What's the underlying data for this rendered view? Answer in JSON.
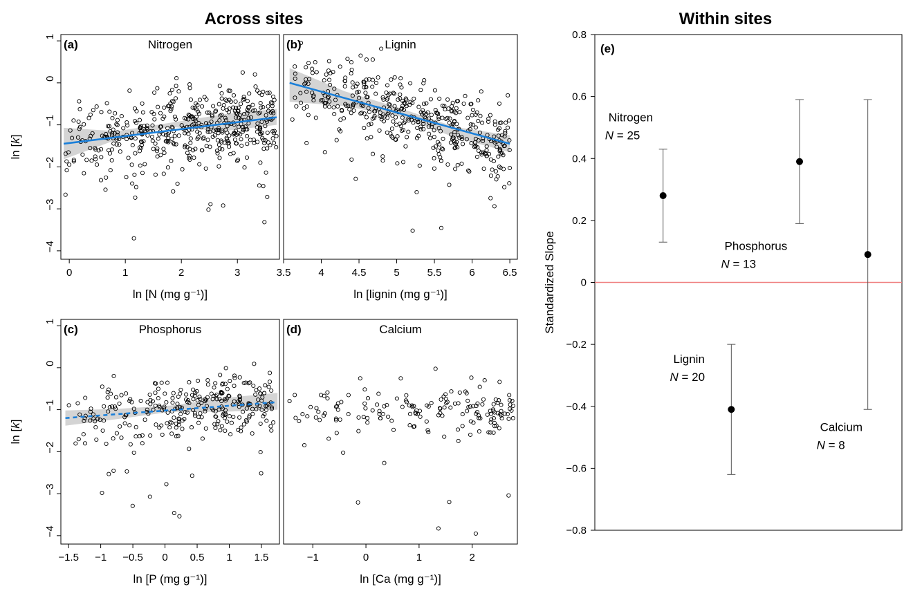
{
  "headings": {
    "left": "Across sites",
    "right": "Within sites"
  },
  "colors": {
    "fit_line": "#1a7fd9",
    "confidence_band": "#d4d4d4",
    "zero_line": "#f08080",
    "points": "#000000"
  },
  "chart_data": [
    {
      "id": "a",
      "tag": "(a)",
      "type": "scatter",
      "title": "Nitrogen",
      "xlabel": "ln [N (mg g⁻¹)]",
      "ylabel": "ln [k]",
      "xlim": [
        -0.15,
        3.75
      ],
      "ylim": [
        -4.2,
        1.15
      ],
      "xticks": [
        0,
        1,
        2,
        3
      ],
      "yticks": [
        1,
        0,
        -1,
        -2,
        -3,
        -4
      ],
      "show_yticks": true,
      "fit": {
        "x0": -0.1,
        "y0": -1.45,
        "x1": 3.7,
        "y1": -0.82,
        "style": "solid",
        "band_lower": [
          -1.82,
          -1.35,
          -1.05,
          -1.15,
          -1.0
        ],
        "band_upper": [
          -1.07,
          -1.15,
          -0.95,
          -0.75,
          -0.62
        ]
      },
      "n_points": 480,
      "point_x_range": [
        -0.1,
        3.7
      ],
      "point_scatter_sd": 0.45
    },
    {
      "id": "b",
      "tag": "(b)",
      "type": "scatter",
      "title": "Lignin",
      "xlabel": "ln [lignin (mg g⁻¹)]",
      "ylabel": "",
      "xlim": [
        3.5,
        6.6
      ],
      "ylim": [
        -4.2,
        1.15
      ],
      "xticks": [
        3.5,
        4.0,
        4.5,
        5.0,
        5.5,
        6.0,
        6.5
      ],
      "yticks": [
        1,
        0,
        -1,
        -2,
        -3,
        -4
      ],
      "show_yticks": false,
      "fit": {
        "x0": 3.58,
        "y0": 0.0,
        "x1": 6.5,
        "y1": -1.45,
        "style": "solid",
        "band_lower": [
          -0.45,
          -0.55,
          -0.8,
          -1.3,
          -1.65
        ],
        "band_upper": [
          0.35,
          -0.2,
          -0.6,
          -1.05,
          -1.25
        ]
      },
      "n_points": 440,
      "point_x_range": [
        3.55,
        6.5
      ],
      "point_scatter_sd": 0.45
    },
    {
      "id": "c",
      "tag": "(c)",
      "type": "scatter",
      "title": "Phosphorus",
      "xlabel": "ln [P (mg g⁻¹)]",
      "ylabel": "ln [k]",
      "xlim": [
        -1.62,
        1.78
      ],
      "ylim": [
        -4.2,
        1.15
      ],
      "xticks": [
        -1.5,
        -1.0,
        -0.5,
        0,
        0.5,
        1.0,
        1.5
      ],
      "yticks": [
        1,
        0,
        -1,
        -2,
        -3,
        -4
      ],
      "show_yticks": true,
      "fit": {
        "x0": -1.55,
        "y0": -1.2,
        "x1": 1.75,
        "y1": -0.82,
        "style": "dashed",
        "band_lower": [
          -1.38,
          -1.22,
          -1.05,
          -1.05,
          -1.0
        ],
        "band_upper": [
          -1.02,
          -0.98,
          -0.9,
          -0.72,
          -0.6
        ]
      },
      "n_points": 300,
      "point_x_range": [
        -1.55,
        1.7
      ],
      "point_scatter_sd": 0.38
    },
    {
      "id": "d",
      "tag": "(d)",
      "type": "scatter",
      "title": "Calcium",
      "xlabel": "ln [Ca (mg g⁻¹)]",
      "ylabel": "",
      "xlim": [
        -1.55,
        2.85
      ],
      "ylim": [
        -4.2,
        1.15
      ],
      "xticks": [
        -1,
        0,
        1,
        2
      ],
      "yticks": [
        1,
        0,
        -1,
        -2,
        -3,
        -4
      ],
      "show_yticks": false,
      "fit": null,
      "n_points": 170,
      "point_x_range": [
        -1.5,
        2.8
      ],
      "point_scatter_sd": 0.3
    },
    {
      "id": "e",
      "tag": "(e)",
      "type": "scatter",
      "title": "",
      "xlabel": "",
      "ylabel": "Standardized Slope",
      "xlim": [
        0,
        4.5
      ],
      "ylim": [
        -0.8,
        0.8
      ],
      "yticks": [
        0.8,
        0.6,
        0.4,
        0.2,
        0,
        -0.2,
        -0.4,
        -0.6,
        -0.8
      ],
      "ytick_labels": [
        "0.8",
        "0.6",
        "0.4",
        "0.2",
        "0",
        "−0.2",
        "−0.4",
        "−0.6",
        "−0.8"
      ],
      "zero_line": 0,
      "series": [
        {
          "name": "Nitrogen",
          "n_text": "N = 25",
          "x": 1,
          "estimate": 0.28,
          "lower": 0.13,
          "upper": 0.43
        },
        {
          "name": "Lignin",
          "n_text": "N = 20",
          "x": 2,
          "estimate": -0.41,
          "lower": -0.62,
          "upper": -0.2
        },
        {
          "name": "Phosphorus",
          "n_text": "N = 13",
          "x": 3,
          "estimate": 0.39,
          "lower": 0.19,
          "upper": 0.59
        },
        {
          "name": "Calcium",
          "n_text": "N = 8",
          "x": 4,
          "estimate": 0.09,
          "lower": -0.41,
          "upper": 0.59
        }
      ]
    }
  ]
}
